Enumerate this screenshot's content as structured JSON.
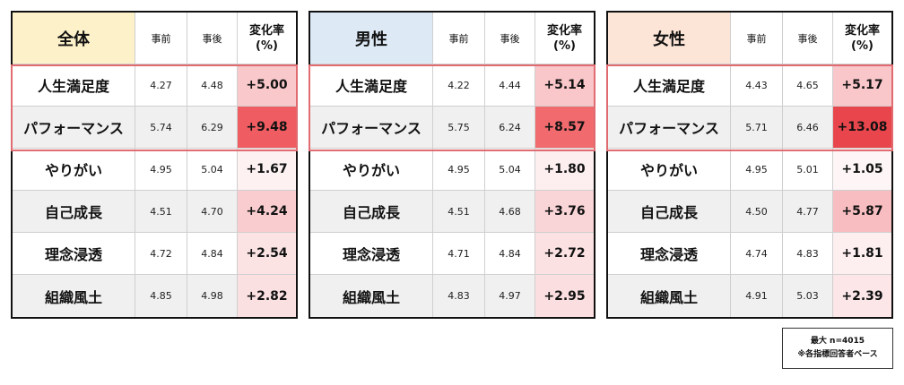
{
  "tables": [
    {
      "title": "全体",
      "header_bg": "#fdf1c9",
      "pre_label": "事前",
      "post_label": "事後",
      "rate_label_line1": "変化率",
      "rate_label_line2": "(%)",
      "rows": [
        {
          "label": "人生満足度",
          "pre": "4.27",
          "post": "4.48",
          "rate": "+5.00",
          "rate_bg": "#f9c8cb"
        },
        {
          "label": "パフォーマンス",
          "pre": "5.74",
          "post": "6.29",
          "rate": "+9.48",
          "rate_bg": "#ef5d62"
        },
        {
          "label": "やりがい",
          "pre": "4.95",
          "post": "5.04",
          "rate": "+1.67",
          "rate_bg": "#fdf1f2"
        },
        {
          "label": "自己成長",
          "pre": "4.51",
          "post": "4.70",
          "rate": "+4.24",
          "rate_bg": "#f9cdd0"
        },
        {
          "label": "理念浸透",
          "pre": "4.72",
          "post": "4.84",
          "rate": "+2.54",
          "rate_bg": "#fbe3e4"
        },
        {
          "label": "組織風土",
          "pre": "4.85",
          "post": "4.98",
          "rate": "+2.82",
          "rate_bg": "#fbe0e2"
        }
      ]
    },
    {
      "title": "男性",
      "header_bg": "#ddeaf6",
      "pre_label": "事前",
      "post_label": "事後",
      "rate_label_line1": "変化率",
      "rate_label_line2": "(%)",
      "rows": [
        {
          "label": "人生満足度",
          "pre": "4.22",
          "post": "4.44",
          "rate": "+5.14",
          "rate_bg": "#f9c6c9"
        },
        {
          "label": "パフォーマンス",
          "pre": "5.75",
          "post": "6.24",
          "rate": "+8.57",
          "rate_bg": "#f06a6e"
        },
        {
          "label": "やりがい",
          "pre": "4.95",
          "post": "5.04",
          "rate": "+1.80",
          "rate_bg": "#fdeff0"
        },
        {
          "label": "自己成長",
          "pre": "4.51",
          "post": "4.68",
          "rate": "+3.76",
          "rate_bg": "#fad5d7"
        },
        {
          "label": "理念浸透",
          "pre": "4.71",
          "post": "4.84",
          "rate": "+2.72",
          "rate_bg": "#fbe1e2"
        },
        {
          "label": "組織風土",
          "pre": "4.83",
          "post": "4.97",
          "rate": "+2.95",
          "rate_bg": "#fbdfe0"
        }
      ]
    },
    {
      "title": "女性",
      "header_bg": "#fce4d6",
      "pre_label": "事前",
      "post_label": "事後",
      "rate_label_line1": "変化率",
      "rate_label_line2": "(%)",
      "rows": [
        {
          "label": "人生満足度",
          "pre": "4.43",
          "post": "4.65",
          "rate": "+5.17",
          "rate_bg": "#f9c6c9"
        },
        {
          "label": "パフォーマンス",
          "pre": "5.71",
          "post": "6.46",
          "rate": "+13.08",
          "rate_bg": "#e8464c"
        },
        {
          "label": "やりがい",
          "pre": "4.95",
          "post": "5.01",
          "rate": "+1.05",
          "rate_bg": "#fef6f6"
        },
        {
          "label": "自己成長",
          "pre": "4.50",
          "post": "4.77",
          "rate": "+5.87",
          "rate_bg": "#f8bdc0"
        },
        {
          "label": "理念浸透",
          "pre": "4.74",
          "post": "4.83",
          "rate": "+1.81",
          "rate_bg": "#fdeff0"
        },
        {
          "label": "組織風土",
          "pre": "4.91",
          "post": "5.03",
          "rate": "+2.39",
          "rate_bg": "#fce6e7"
        }
      ]
    }
  ],
  "note": {
    "line1": "最大 n=4015",
    "line2": "※各指標回答者ベース"
  }
}
